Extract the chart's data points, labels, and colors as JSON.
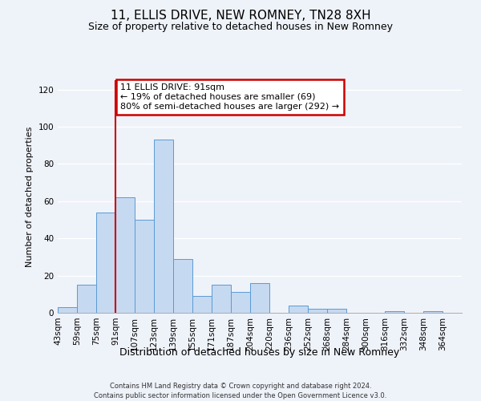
{
  "title": "11, ELLIS DRIVE, NEW ROMNEY, TN28 8XH",
  "subtitle": "Size of property relative to detached houses in New Romney",
  "xlabel": "Distribution of detached houses by size in New Romney",
  "ylabel": "Number of detached properties",
  "bin_labels": [
    "43sqm",
    "59sqm",
    "75sqm",
    "91sqm",
    "107sqm",
    "123sqm",
    "139sqm",
    "155sqm",
    "171sqm",
    "187sqm",
    "204sqm",
    "220sqm",
    "236sqm",
    "252sqm",
    "268sqm",
    "284sqm",
    "300sqm",
    "316sqm",
    "332sqm",
    "348sqm",
    "364sqm"
  ],
  "bar_heights": [
    3,
    15,
    54,
    62,
    50,
    93,
    29,
    9,
    15,
    11,
    16,
    0,
    4,
    2,
    2,
    0,
    0,
    1,
    0,
    1,
    0
  ],
  "bar_color": "#c5d9f1",
  "bar_edge_color": "#5a9bd5",
  "vline_index": 3,
  "vline_color": "#cc0000",
  "annotation_title": "11 ELLIS DRIVE: 91sqm",
  "annotation_line1": "← 19% of detached houses are smaller (69)",
  "annotation_line2": "80% of semi-detached houses are larger (292) →",
  "annotation_box_color": "#ffffff",
  "annotation_box_edge": "#cc0000",
  "ylim": [
    0,
    125
  ],
  "yticks": [
    0,
    20,
    40,
    60,
    80,
    100,
    120
  ],
  "footer1": "Contains HM Land Registry data © Crown copyright and database right 2024.",
  "footer2": "Contains public sector information licensed under the Open Government Licence v3.0.",
  "bg_color": "#eef2f9",
  "title_fontsize": 11,
  "subtitle_fontsize": 9,
  "ylabel_fontsize": 8,
  "xlabel_fontsize": 9,
  "tick_fontsize": 7.5
}
